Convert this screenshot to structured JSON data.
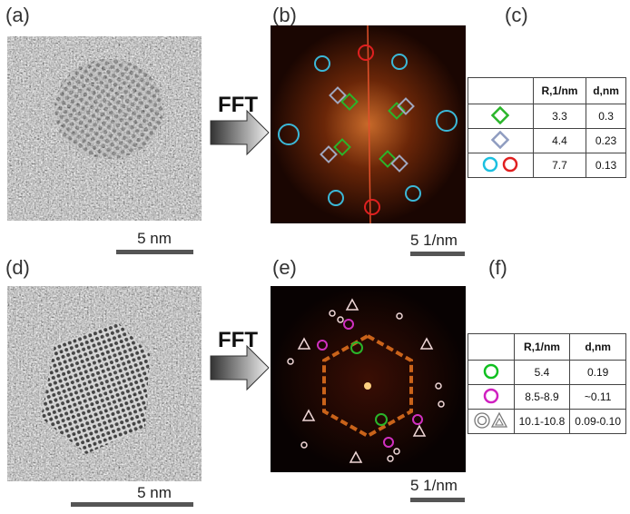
{
  "panels": [
    {
      "label": "(a)",
      "scale_bar": "5 nm"
    },
    {
      "label": "(b)",
      "scale_bar": "5 1/nm"
    },
    {
      "label": "(c)"
    },
    {
      "label": "(d)",
      "scale_bar": "5 nm"
    },
    {
      "label": "(e)",
      "scale_bar": "5 1/nm"
    },
    {
      "label": "(f)"
    }
  ],
  "arrows": [
    "FFT",
    "FFT"
  ],
  "tables": [
    {
      "header": [
        "R,1/nm",
        "d,nm"
      ],
      "rows": [
        [
          "3.3",
          "0.3"
        ],
        [
          "4.4",
          "0.23"
        ],
        [
          "7.7",
          "0.13"
        ]
      ]
    },
    {
      "header": [
        "R,1/nm",
        "d,nm"
      ],
      "rows": [
        [
          "5.4",
          "0.19"
        ],
        [
          "8.5-8.9",
          "~0.11"
        ],
        [
          "10.1-10.8",
          "0.09-0.10"
        ]
      ]
    }
  ]
}
